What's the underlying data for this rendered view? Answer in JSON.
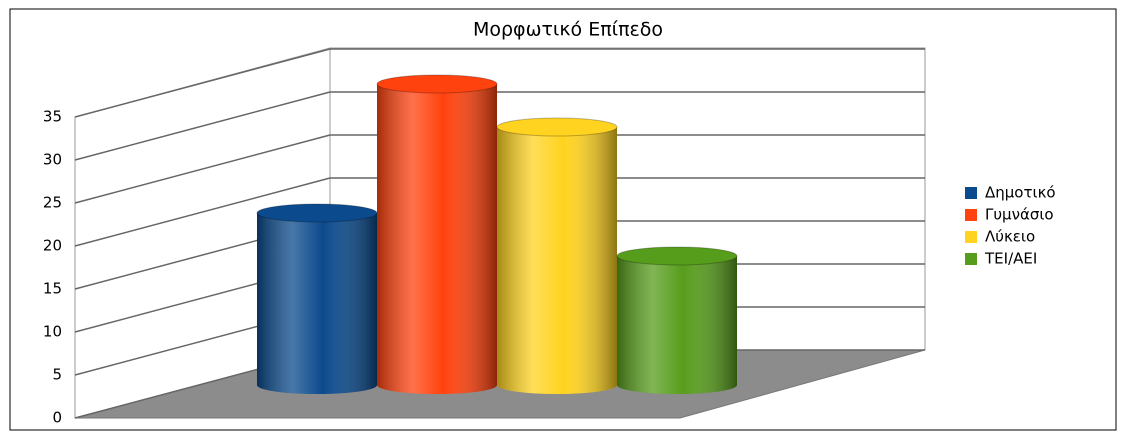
{
  "chart_data": {
    "type": "bar3d",
    "title": "Μορφωτικό Επίπεδο",
    "series": [
      {
        "name": "Δημοτικό",
        "color": "#0b4a8c",
        "values": [
          20
        ]
      },
      {
        "name": "Γυμνάσιο",
        "color": "#ff420e",
        "values": [
          35
        ]
      },
      {
        "name": "Λύκειο",
        "color": "#ffd320",
        "values": [
          30
        ]
      },
      {
        "name": "ΤΕΙ/ΑΕΙ",
        "color": "#579d1c",
        "values": [
          15
        ]
      }
    ],
    "ylim": [
      0,
      35
    ],
    "yticks": [
      0,
      5,
      10,
      15,
      20,
      25,
      30,
      35
    ],
    "grid": true,
    "legend": "right"
  }
}
